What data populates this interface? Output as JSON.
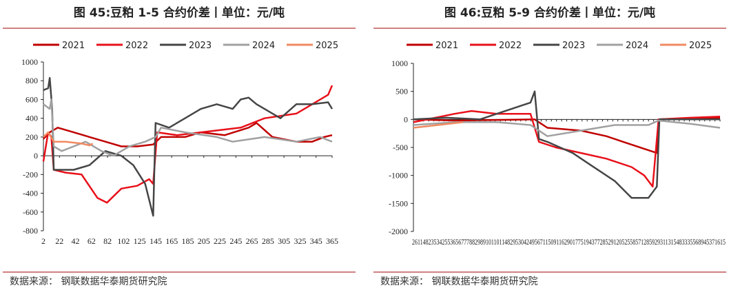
{
  "chart_data": [
    {
      "type": "line",
      "title": "图 45:豆粕 1-5 合约价差丨单位：元/吨",
      "source": "数据来源：  钢联数据华泰期货研究院",
      "ylim": [
        -800,
        1000
      ],
      "yticks": [
        1000,
        800,
        600,
        400,
        200,
        0,
        -200,
        -400,
        -600,
        -800
      ],
      "xlim": [
        2,
        365
      ],
      "xtick_labels": [
        "2",
        "22",
        "42",
        "62",
        "82",
        "102",
        "125",
        "145",
        "165",
        "185",
        "205",
        "225",
        "245",
        "265",
        "285",
        "305",
        "325",
        "345",
        "365"
      ],
      "legend": "top",
      "series": [
        {
          "name": "2021",
          "color": "#c00000",
          "x": [
            2,
            10,
            20,
            40,
            60,
            80,
            100,
            120,
            140,
            150,
            180,
            200,
            230,
            260,
            270,
            290,
            320,
            340,
            355,
            365
          ],
          "y": [
            180,
            250,
            300,
            250,
            200,
            150,
            100,
            100,
            120,
            200,
            200,
            250,
            220,
            300,
            350,
            200,
            150,
            150,
            200,
            220
          ]
        },
        {
          "name": "2022",
          "color": "#e8101a",
          "x": [
            2,
            8,
            12,
            15,
            30,
            50,
            70,
            82,
            100,
            120,
            135,
            140,
            145,
            170,
            200,
            250,
            280,
            320,
            350,
            360,
            365
          ],
          "y": [
            -60,
            250,
            200,
            -150,
            -180,
            -200,
            -450,
            -500,
            -350,
            -320,
            -250,
            -300,
            250,
            220,
            250,
            300,
            400,
            450,
            600,
            650,
            750
          ]
        },
        {
          "name": "2023",
          "color": "#454545",
          "x": [
            2,
            8,
            10,
            13,
            15,
            40,
            60,
            80,
            100,
            115,
            130,
            140,
            143,
            160,
            180,
            200,
            220,
            240,
            250,
            260,
            270,
            280,
            300,
            320,
            340,
            360,
            365
          ],
          "y": [
            700,
            720,
            830,
            500,
            -150,
            -150,
            -100,
            50,
            0,
            -100,
            -300,
            -640,
            350,
            300,
            400,
            500,
            550,
            500,
            600,
            620,
            550,
            500,
            400,
            550,
            550,
            570,
            500
          ]
        },
        {
          "name": "2024",
          "color": "#a0a0a0",
          "x": [
            2,
            10,
            12,
            15,
            25,
            40,
            55,
            75,
            90,
            110,
            130,
            143,
            150,
            180,
            220,
            240,
            280,
            320,
            350,
            365
          ],
          "y": [
            550,
            500,
            600,
            100,
            50,
            100,
            150,
            50,
            0,
            100,
            150,
            200,
            300,
            250,
            200,
            150,
            200,
            150,
            200,
            150
          ]
        },
        {
          "name": "2025",
          "color": "#f08a60",
          "x": [
            2,
            8,
            15,
            30,
            50,
            60,
            64
          ],
          "y": [
            200,
            250,
            150,
            150,
            130,
            110,
            130
          ]
        }
      ]
    },
    {
      "type": "line",
      "title": "图 46:豆粕 5-9 合约价差丨单位：元/吨",
      "source": "数据来源：  钢联数据华泰期货研究院",
      "ylim": [
        -2000,
        1000
      ],
      "yticks": [
        1000,
        500,
        0,
        -500,
        -1000,
        -1500,
        -2000
      ],
      "xlim": [
        1,
        365
      ],
      "xtick_labels": [
        "2611482353425536567778829891011011482953042495671150911629017751943772852912052558571285929311315483335568945371615"
      ],
      "legend": "top",
      "series": [
        {
          "name": "2021",
          "color": "#c00000",
          "x": [
            1,
            50,
            100,
            145,
            150,
            160,
            200,
            230,
            250,
            280,
            290,
            292,
            330,
            365
          ],
          "y": [
            0,
            -20,
            -10,
            0,
            -50,
            -150,
            -200,
            -300,
            -400,
            -550,
            -600,
            0,
            20,
            20
          ]
        },
        {
          "name": "2022",
          "color": "#e8101a",
          "x": [
            1,
            50,
            70,
            100,
            140,
            150,
            170,
            200,
            230,
            260,
            275,
            285,
            292,
            330,
            365
          ],
          "y": [
            -50,
            100,
            150,
            100,
            100,
            -400,
            -500,
            -600,
            -700,
            -850,
            -1000,
            -1200,
            0,
            30,
            50
          ]
        },
        {
          "name": "2023",
          "color": "#454545",
          "x": [
            1,
            40,
            80,
            120,
            140,
            145,
            150,
            160,
            190,
            210,
            240,
            260,
            280,
            290,
            293,
            330,
            365
          ],
          "y": [
            0,
            30,
            0,
            200,
            300,
            500,
            -350,
            -400,
            -600,
            -800,
            -1100,
            -1400,
            -1400,
            -1200,
            0,
            0,
            0
          ]
        },
        {
          "name": "2024",
          "color": "#a0a0a0",
          "x": [
            1,
            50,
            100,
            140,
            160,
            200,
            240,
            280,
            292,
            330,
            365
          ],
          "y": [
            -100,
            -50,
            -50,
            -100,
            -300,
            -200,
            -100,
            -100,
            -20,
            -80,
            -150
          ]
        },
        {
          "name": "2025",
          "color": "#f08a60",
          "x": [
            1,
            30,
            60
          ],
          "y": [
            -150,
            -100,
            -50
          ]
        }
      ]
    }
  ]
}
